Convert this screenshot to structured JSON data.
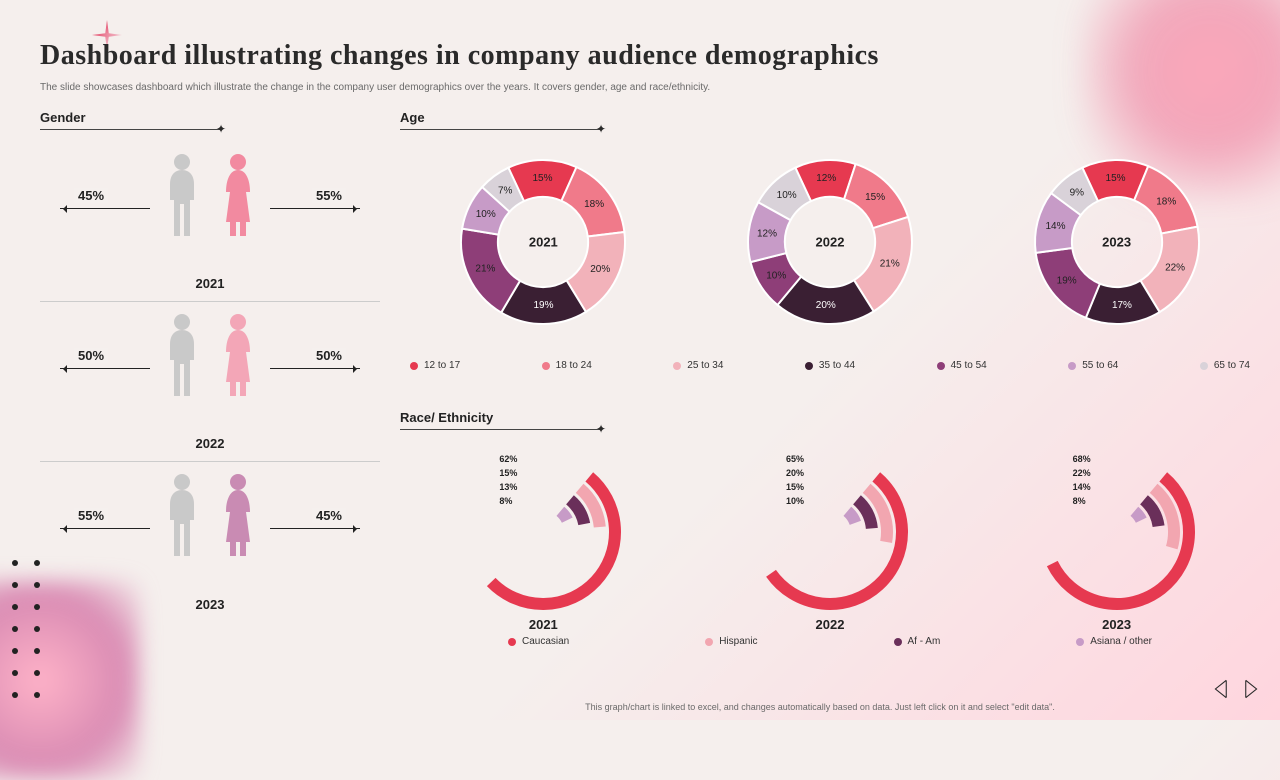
{
  "slide": {
    "title": "Dashboard illustrating changes in company audience demographics",
    "subtitle": "The slide showcases dashboard which illustrate the change in the company user demographics over the years. It covers gender, age and race/ethnicity.",
    "footer": "This graph/chart is linked to excel, and changes automatically based on data. Just left click on it and select \"edit data\"."
  },
  "palette": {
    "background": "#f5efed",
    "accent_pink": "#f08aa6",
    "text_dark": "#2a2a2a"
  },
  "gender": {
    "title": "Gender",
    "male_color": "#c9c9c9",
    "female_colors": [
      "#f28aa0",
      "#f3a6b7",
      "#c98bb3"
    ],
    "rows": [
      {
        "year": "2021",
        "male_pct": "45%",
        "female_pct": "55%",
        "female_color": "#f28aa0"
      },
      {
        "year": "2022",
        "male_pct": "50%",
        "female_pct": "50%",
        "female_color": "#f3a6b7"
      },
      {
        "year": "2023",
        "male_pct": "55%",
        "female_pct": "45%",
        "female_color": "#c98bb3"
      }
    ]
  },
  "age": {
    "title": "Age",
    "legend": [
      {
        "label": "12 to 17",
        "color": "#e63950"
      },
      {
        "label": "18 to 24",
        "color": "#f07a8a"
      },
      {
        "label": "25 to 34",
        "color": "#f2b2ba"
      },
      {
        "label": "35 to 44",
        "color": "#3a1f33"
      },
      {
        "label": "45 to 54",
        "color": "#8e3e78"
      },
      {
        "label": "55 to 64",
        "color": "#c79bc7"
      },
      {
        "label": "65 to 74",
        "color": "#d9d2d9"
      }
    ],
    "label_fontsize": 10,
    "donut_inner_ratio": 0.55,
    "donut_stroke": "#ffffff",
    "donut_stroke_width": 2,
    "years": [
      {
        "year": "2021",
        "values": [
          15,
          18,
          20,
          19,
          21,
          10,
          7
        ]
      },
      {
        "year": "2022",
        "values": [
          12,
          15,
          21,
          20,
          10,
          12,
          10
        ]
      },
      {
        "year": "2023",
        "values": [
          15,
          18,
          22,
          17,
          19,
          14,
          9
        ]
      }
    ]
  },
  "race": {
    "title": "Race/ Ethnicity",
    "legend": [
      {
        "label": "Caucasian",
        "color": "#e63950"
      },
      {
        "label": "Hispanic",
        "color": "#f2a6b0"
      },
      {
        "label": "Af - Am",
        "color": "#6a2f5a"
      },
      {
        "label": "Asiana / other",
        "color": "#c79bc7"
      }
    ],
    "arc_start_deg": 40,
    "arc_span_deg_per_100pct": 300,
    "ring_gap": 3,
    "ring_width": 12,
    "label_fontsize": 9,
    "years": [
      {
        "year": "2021",
        "values": [
          62,
          15,
          13,
          8
        ]
      },
      {
        "year": "2022",
        "values": [
          65,
          20,
          15,
          10
        ]
      },
      {
        "year": "2023",
        "values": [
          68,
          22,
          14,
          8
        ]
      }
    ]
  }
}
